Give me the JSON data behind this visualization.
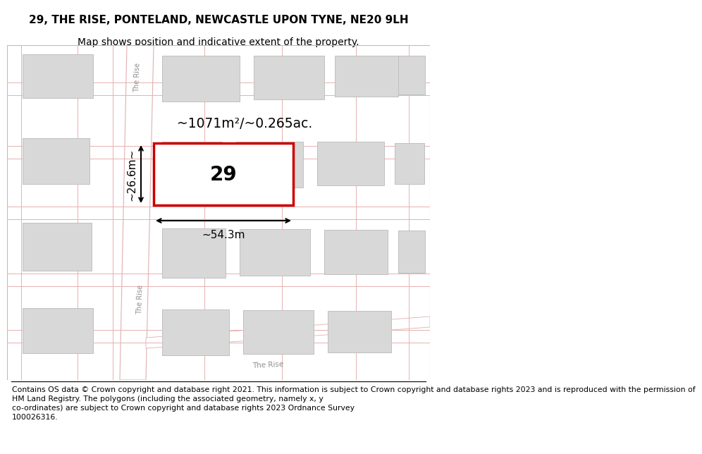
{
  "title": "29, THE RISE, PONTELAND, NEWCASTLE UPON TYNE, NE20 9LH",
  "subtitle": "Map shows position and indicative extent of the property.",
  "footer": "Contains OS data © Crown copyright and database right 2021. This information is subject to Crown copyright and database rights 2023 and is reproduced with the permission of\nHM Land Registry. The polygons (including the associated geometry, namely x, y\nco-ordinates) are subject to Crown copyright and database rights 2023 Ordnance Survey\n100026316.",
  "map_bg": "#f7f7f7",
  "road_fill": "#ffffff",
  "road_edge": "#e0b0b0",
  "plot_line_color": "#e8b0b0",
  "building_fill": "#d8d8d8",
  "building_edge": "#c0c0c0",
  "highlight_edge": "#cc0000",
  "highlight_lw": 2.5,
  "area_text": "~1071m²/~0.265ac.",
  "width_text": "~54.3m",
  "height_text": "~26.6m~",
  "number_text": "29",
  "street_label": "The Rise",
  "title_fontsize": 11,
  "subtitle_fontsize": 10,
  "footer_fontsize": 7.8
}
